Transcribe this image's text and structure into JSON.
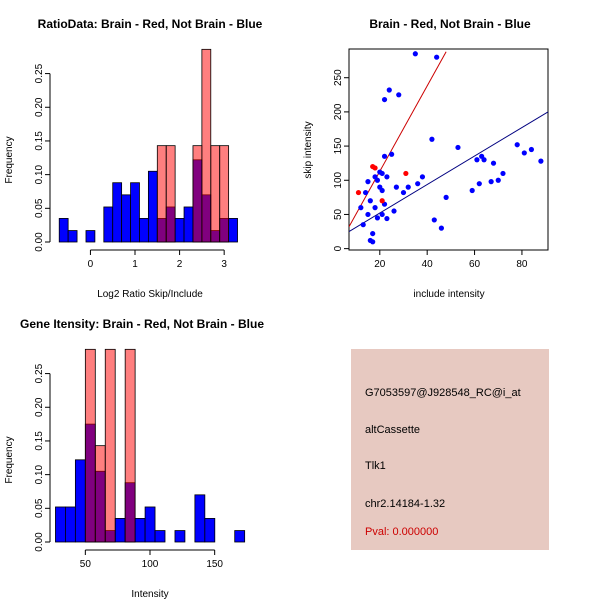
{
  "charts": [
    {
      "type": "bar",
      "title": "RatioData: Brain - Red, Not Brain - Blue",
      "xlabel": "Log2 Ratio Skip/Include",
      "ylabel": "Frequency",
      "xlim": [
        -0.75,
        3.4
      ],
      "ylim": [
        0,
        0.285
      ],
      "xticks": [
        0,
        1,
        2,
        3
      ],
      "yticks": [
        0.0,
        0.05,
        0.1,
        0.15,
        0.2,
        0.25
      ],
      "ytick_labels": [
        "0.00",
        "0.05",
        "0.10",
        "0.15",
        "0.20",
        "0.25"
      ],
      "bin_width": 0.2,
      "series": [
        {
          "name": "Not Brain",
          "color": "#0000ff",
          "starts": [
            -0.7,
            -0.5,
            -0.1,
            0.3,
            0.5,
            0.7,
            0.9,
            1.1,
            1.3,
            1.5,
            1.7,
            1.9,
            2.1,
            2.3,
            2.5,
            2.7,
            2.9,
            3.1
          ],
          "values": [
            0.035,
            0.017,
            0.017,
            0.052,
            0.088,
            0.07,
            0.088,
            0.035,
            0.105,
            0.035,
            0.052,
            0.035,
            0.052,
            0.122,
            0.07,
            0.017,
            0.035,
            0.035
          ]
        },
        {
          "name": "Brain",
          "color": "#ff0000",
          "starts": [
            1.5,
            1.7,
            2.3,
            2.5,
            2.7,
            2.9
          ],
          "values": [
            0.143,
            0.143,
            0.143,
            0.286,
            0.143,
            0.143
          ]
        }
      ]
    },
    {
      "type": "scatter",
      "title": "Brain - Red, Not Brain - Blue",
      "xlabel": "include intensity",
      "ylabel": "skip intensity",
      "xlim": [
        7,
        91
      ],
      "ylim": [
        -2,
        292
      ],
      "xticks": [
        20,
        40,
        60,
        80
      ],
      "yticks": [
        0,
        50,
        100,
        150,
        200,
        250
      ],
      "series": [
        {
          "name": "Not Brain",
          "color": "#0000ff",
          "x": [
            12,
            13,
            14,
            15,
            15,
            16,
            16,
            17,
            17,
            18,
            18,
            19,
            19,
            20,
            20,
            21,
            21,
            21,
            22,
            22,
            22,
            23,
            23,
            24,
            25,
            26,
            27,
            28,
            30,
            32,
            35,
            36,
            38,
            42,
            43,
            44,
            46,
            48,
            53,
            59,
            61,
            62,
            63,
            64,
            67,
            68,
            70,
            72,
            78,
            81,
            84,
            88
          ],
          "y": [
            60,
            35,
            82,
            50,
            98,
            12,
            70,
            10,
            22,
            105,
            60,
            100,
            45,
            90,
            112,
            50,
            85,
            110,
            135,
            65,
            218,
            44,
            105,
            232,
            138,
            55,
            90,
            225,
            82,
            90,
            285,
            95,
            105,
            160,
            42,
            280,
            30,
            75,
            148,
            85,
            130,
            95,
            135,
            130,
            98,
            125,
            100,
            110,
            152,
            140,
            145,
            128
          ]
        },
        {
          "name": "Brain",
          "color": "#ff0000",
          "x": [
            11,
            17,
            18,
            21,
            31
          ],
          "y": [
            82,
            120,
            118,
            70,
            110
          ]
        }
      ],
      "lines": [
        {
          "name": "Brain fit",
          "color": "#cc0000",
          "x": [
            7,
            48
          ],
          "y": [
            32,
            288
          ]
        },
        {
          "name": "Not Brain fit",
          "color": "#000080",
          "x": [
            7,
            91
          ],
          "y": [
            25,
            200
          ]
        }
      ]
    },
    {
      "type": "bar",
      "title": "Gene Itensity: Brain - Red, Not Brain - Blue",
      "xlabel": "Intensity",
      "ylabel": "Frequency",
      "xlim": [
        25,
        175
      ],
      "ylim": [
        0,
        0.285
      ],
      "xticks": [
        50,
        100,
        150
      ],
      "yticks": [
        0.0,
        0.05,
        0.1,
        0.15,
        0.2,
        0.25
      ],
      "ytick_labels": [
        "0.00",
        "0.05",
        "0.10",
        "0.15",
        "0.20",
        "0.25"
      ],
      "bin_width": 7.7,
      "series": [
        {
          "name": "Not Brain",
          "color": "#0000ff",
          "starts": [
            26.9,
            34.6,
            42.3,
            50.0,
            57.7,
            65.4,
            73.1,
            80.8,
            88.5,
            96.2,
            103.9,
            119.3,
            134.7,
            142.4,
            165.5
          ],
          "values": [
            0.052,
            0.052,
            0.122,
            0.175,
            0.105,
            0.017,
            0.035,
            0.088,
            0.035,
            0.052,
            0.017,
            0.017,
            0.07,
            0.035,
            0.017
          ]
        },
        {
          "name": "Brain",
          "color": "#ff0000",
          "starts": [
            50.0,
            57.7,
            65.4,
            80.8
          ],
          "values": [
            0.286,
            0.143,
            0.286,
            0.286
          ]
        }
      ]
    }
  ],
  "info": {
    "probe_id": "G7053597@J928548_RC@i_at",
    "event_type": "altCassette",
    "gene": "Tlk1",
    "location": "chr2.14184-1.32",
    "pval": "Pval: 0.000000",
    "bg_color": "#e7c9c1",
    "pval_color": "#cc0000"
  }
}
